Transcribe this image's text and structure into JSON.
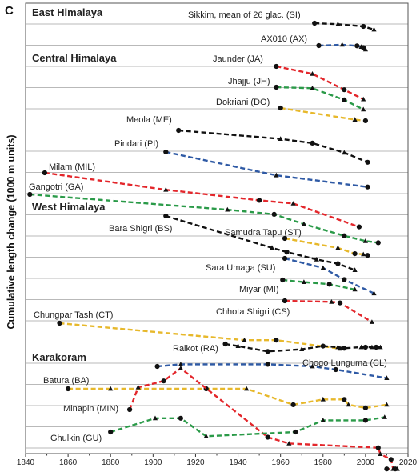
{
  "panel_letter": "C",
  "regions": [
    "East Himalaya",
    "Central Himalaya",
    "West Himalaya",
    "Karakoram"
  ],
  "chart_data": {
    "type": "line",
    "title": "",
    "xlabel": "",
    "ylabel": "Cumulative length change (1000 m units)",
    "xlim": [
      1840,
      2020
    ],
    "x_ticks": [
      "1840",
      "1860",
      "1880",
      "1900",
      "1920",
      "1940",
      "1960",
      "1980",
      "2000",
      "2020"
    ],
    "grid": "horizontal gridlines, one per 1000 m unit",
    "marker_legend": "circles and triangles mark observation dates",
    "colors": {
      "black": "#111111",
      "red": "#e3262b",
      "green": "#2a9a48",
      "yellow": "#e7b82b",
      "blue": "#2f5aa5",
      "grid": "#b9b9b9"
    },
    "series": [
      {
        "name": "Sikkim, mean of 26 glac. (SI)",
        "region": "East Himalaya",
        "color": "black",
        "points": [
          [
            1976,
            0.0
          ],
          [
            1987,
            -0.05
          ],
          [
            1999,
            -0.15
          ],
          [
            2004,
            -0.3
          ]
        ]
      },
      {
        "name": "AX010 (AX)",
        "region": "East Himalaya",
        "color": "blue",
        "points": [
          [
            1978,
            0.0
          ],
          [
            1989,
            0.04
          ],
          [
            1996,
            -0.01
          ],
          [
            1998,
            -0.06
          ],
          [
            1999,
            -0.1
          ],
          [
            2000,
            -0.18
          ]
        ]
      },
      {
        "name": "Jaunder (JA)",
        "region": "Central Himalaya",
        "color": "red",
        "points": [
          [
            1958,
            0.0
          ],
          [
            1975,
            -0.35
          ],
          [
            1990,
            -1.1
          ],
          [
            1999,
            -1.55
          ]
        ]
      },
      {
        "name": "Jhajju (JH)",
        "region": "Central Himalaya",
        "color": "green",
        "points": [
          [
            1958,
            0.0
          ],
          [
            1975,
            -0.05
          ],
          [
            1990,
            -0.6
          ],
          [
            1999,
            -1.05
          ]
        ]
      },
      {
        "name": "Dokriani (DO)",
        "region": "Central Himalaya",
        "color": "yellow",
        "points": [
          [
            1960,
            0.0
          ],
          [
            1995,
            -0.55
          ],
          [
            2000,
            -0.6
          ]
        ]
      },
      {
        "name": "Meola (ME)",
        "region": "Central Himalaya",
        "color": "black",
        "points": [
          [
            1912,
            0.0
          ],
          [
            1960,
            -0.4
          ],
          [
            1975,
            -0.6
          ],
          [
            1990,
            -1.05
          ],
          [
            2001,
            -1.5
          ]
        ]
      },
      {
        "name": "Pindari (PI)",
        "region": "Central Himalaya",
        "color": "blue",
        "points": [
          [
            1906,
            0.0
          ],
          [
            1958,
            -1.1
          ],
          [
            2001,
            -1.65
          ]
        ]
      },
      {
        "name": "Milam (MIL)",
        "region": "Central Himalaya",
        "color": "red",
        "points": [
          [
            1849,
            0.0
          ],
          [
            1906,
            -0.8
          ],
          [
            1950,
            -1.3
          ],
          [
            1966,
            -1.45
          ],
          [
            1997,
            -2.55
          ]
        ]
      },
      {
        "name": "Gangotri (GA)",
        "region": "Central Himalaya",
        "color": "green",
        "points": [
          [
            1842,
            0.0
          ],
          [
            1935,
            -0.72
          ],
          [
            1957,
            -0.94
          ],
          [
            1971,
            -1.4
          ],
          [
            1990,
            -1.95
          ],
          [
            2000,
            -2.2
          ],
          [
            2006,
            -2.28
          ]
        ]
      },
      {
        "name": "Bara Shigri (BS)",
        "region": "West Himalaya",
        "color": "black",
        "points": [
          [
            1906,
            0.0
          ],
          [
            1956,
            -1.5
          ],
          [
            1963,
            -1.7
          ],
          [
            1977,
            -2.05
          ],
          [
            1987,
            -2.25
          ],
          [
            1995,
            -2.55
          ]
        ]
      },
      {
        "name": "Samudra Tapu (ST)",
        "region": "West Himalaya",
        "color": "yellow",
        "points": [
          [
            1962,
            0.0
          ],
          [
            1987,
            -0.45
          ],
          [
            1995,
            -0.72
          ],
          [
            1999,
            -0.75
          ],
          [
            2001,
            -0.8
          ]
        ]
      },
      {
        "name": "Sara Umaga (SU)",
        "region": "West Himalaya",
        "color": "blue",
        "points": [
          [
            1962,
            0.0
          ],
          [
            1980,
            -0.45
          ],
          [
            1990,
            -1.0
          ],
          [
            2004,
            -1.65
          ]
        ]
      },
      {
        "name": "Miyar (MI)",
        "region": "West Himalaya",
        "color": "green",
        "points": [
          [
            1961,
            0.0
          ],
          [
            1971,
            -0.1
          ],
          [
            1983,
            -0.2
          ],
          [
            1995,
            -0.45
          ]
        ]
      },
      {
        "name": "Chhota Shigri (CS)",
        "region": "West Himalaya",
        "color": "red",
        "points": [
          [
            1962,
            0.0
          ],
          [
            1984,
            -0.05
          ],
          [
            1988,
            -0.1
          ],
          [
            2003,
            -1.0
          ]
        ]
      },
      {
        "name": "Chungpar Tash (CT)",
        "region": "West Himalaya",
        "color": "yellow",
        "points": [
          [
            1856,
            0.0
          ],
          [
            1943,
            -0.8
          ],
          [
            1958,
            -0.8
          ],
          [
            1988,
            -1.2
          ]
        ]
      },
      {
        "name": "Raikot (RA)",
        "region": "West Himalaya",
        "color": "black",
        "points": [
          [
            1934,
            0.0
          ],
          [
            1940,
            -0.1
          ],
          [
            1954,
            -0.35
          ],
          [
            1970,
            -0.25
          ],
          [
            1980,
            -0.1
          ],
          [
            1987,
            -0.15
          ],
          [
            1990,
            -0.2
          ],
          [
            1998,
            -0.15
          ],
          [
            2000,
            -0.15
          ],
          [
            2003,
            -0.15
          ],
          [
            2005,
            -0.15
          ],
          [
            2007,
            -0.15
          ]
        ]
      },
      {
        "name": "Chogo Lunguma (CL)",
        "region": "Karakoram",
        "color": "blue",
        "points": [
          [
            1902,
            0.0
          ],
          [
            1913,
            0.1
          ],
          [
            1954,
            0.1
          ],
          [
            1975,
            0.0
          ],
          [
            1986,
            -0.15
          ],
          [
            2010,
            -0.55
          ]
        ]
      },
      {
        "name": "Batura (BA)",
        "region": "Karakoram",
        "color": "yellow",
        "points": [
          [
            1860,
            0.0
          ],
          [
            1880,
            0.0
          ],
          [
            1925,
            0.0
          ],
          [
            1944,
            0.0
          ],
          [
            1966,
            -0.75
          ],
          [
            1980,
            -0.5
          ],
          [
            1990,
            -0.5
          ],
          [
            1992,
            -0.75
          ],
          [
            2000,
            -0.9
          ],
          [
            2010,
            -0.75
          ]
        ]
      },
      {
        "name": "Minapin (MIN)",
        "region": "Karakoram",
        "color": "red",
        "points": [
          [
            1889,
            0.0
          ],
          [
            1893,
            1.05
          ],
          [
            1905,
            1.35
          ],
          [
            1913,
            1.95
          ],
          [
            1954,
            -1.3
          ],
          [
            1964,
            -1.6
          ],
          [
            2006,
            -1.8
          ],
          [
            2007,
            -2.1
          ],
          [
            2012,
            -2.35
          ],
          [
            2013,
            -2.8
          ],
          [
            2014,
            -2.8
          ],
          [
            2015,
            -2.8
          ],
          [
            2010,
            -2.8
          ]
        ]
      },
      {
        "name": "Ghulkin (GU)",
        "region": "Karakoram",
        "color": "green",
        "points": [
          [
            1880,
            0.0
          ],
          [
            1901,
            0.65
          ],
          [
            1913,
            0.65
          ],
          [
            1925,
            -0.2
          ],
          [
            1967,
            0.0
          ],
          [
            1980,
            0.55
          ],
          [
            2000,
            0.55
          ],
          [
            2009,
            0.7
          ]
        ]
      }
    ],
    "annotations": [
      "East Himalaya",
      "Central Himalaya",
      "West Himalaya",
      "Karakoram"
    ]
  }
}
